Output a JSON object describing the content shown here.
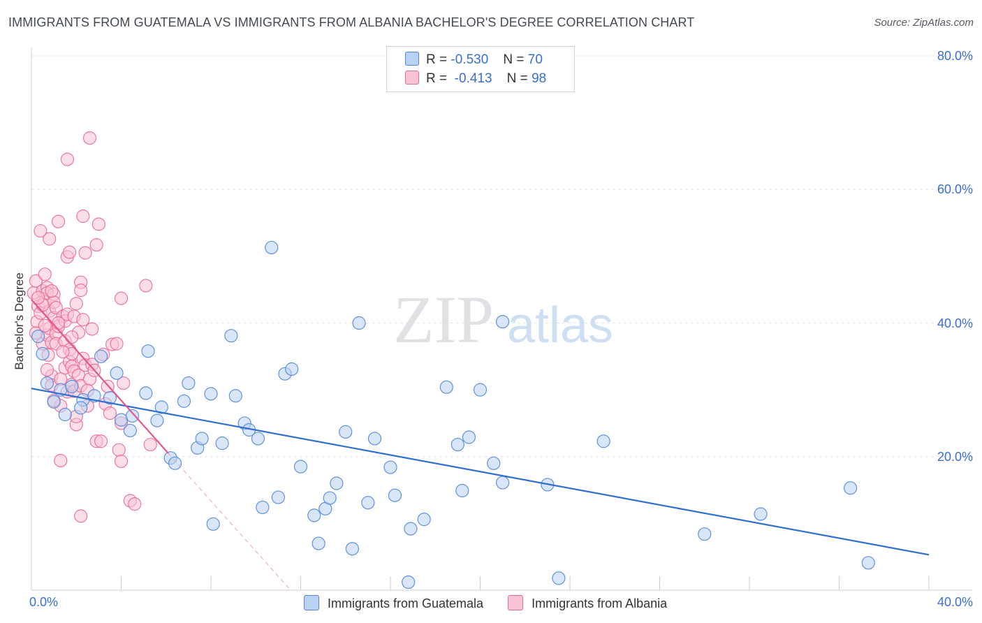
{
  "title": "IMMIGRANTS FROM GUATEMALA VS IMMIGRANTS FROM ALBANIA BACHELOR'S DEGREE CORRELATION CHART",
  "source": "Source: ZipAtlas.com",
  "watermark": {
    "zip": "ZIP",
    "atlas": "atlas"
  },
  "legend": {
    "rows": [
      {
        "r_label": "R =",
        "r_value": "-0.530",
        "n_label": "N =",
        "n_value": "70"
      },
      {
        "r_label": "R =",
        "r_value": "-0.413",
        "n_label": "N =",
        "n_value": "98"
      }
    ]
  },
  "colors": {
    "guatemala_fill": "#b9d2f3",
    "guatemala_stroke": "#4f86d8",
    "guatemala_line": "#2f6fd0",
    "albania_fill": "#f9c3d6",
    "albania_stroke": "#e86a96",
    "albania_line": "#e2588a",
    "grid": "#dfe3e8",
    "tick_text": "#3a6fd1"
  },
  "chart_data": {
    "type": "scatter",
    "title": "IMMIGRANTS FROM GUATEMALA VS IMMIGRANTS FROM ALBANIA BACHELOR'S DEGREE CORRELATION CHART",
    "xlabel": "",
    "ylabel": "Bachelor's Degree",
    "xlim": [
      0,
      40
    ],
    "ylim": [
      0,
      80
    ],
    "x_tick_labels": [
      "0.0%",
      "40.0%"
    ],
    "y_tick_labels": [
      "20.0%",
      "40.0%",
      "60.0%",
      "80.0%"
    ],
    "y_ticks": [
      20,
      40,
      60,
      80
    ],
    "grid": true,
    "legend_position": "top-center",
    "series": [
      {
        "name": "Immigrants from Guatemala",
        "r": -0.53,
        "n": 70,
        "trend": {
          "x": [
            0,
            40
          ],
          "y": [
            30.2,
            5.3
          ]
        },
        "points": [
          [
            0.3,
            38
          ],
          [
            0.5,
            35.4
          ],
          [
            0.7,
            31
          ],
          [
            1.0,
            28.2
          ],
          [
            1.3,
            30
          ],
          [
            1.5,
            26.3
          ],
          [
            1.8,
            30.5
          ],
          [
            2.3,
            28.5
          ],
          [
            2.2,
            27.3
          ],
          [
            2.8,
            29.1
          ],
          [
            3.1,
            35
          ],
          [
            3.5,
            28.8
          ],
          [
            3.8,
            32.5
          ],
          [
            4.0,
            25.5
          ],
          [
            4.4,
            23.9
          ],
          [
            4.5,
            26.1
          ],
          [
            5.1,
            29.5
          ],
          [
            5.2,
            35.8
          ],
          [
            5.6,
            25.4
          ],
          [
            5.8,
            27.4
          ],
          [
            6.2,
            19.8
          ],
          [
            6.4,
            19
          ],
          [
            6.8,
            28.3
          ],
          [
            7.0,
            31
          ],
          [
            7.4,
            21.3
          ],
          [
            7.6,
            22.7
          ],
          [
            8.0,
            29.4
          ],
          [
            8.1,
            9.9
          ],
          [
            8.5,
            22
          ],
          [
            8.9,
            38.1
          ],
          [
            9.1,
            29.1
          ],
          [
            9.5,
            25
          ],
          [
            9.7,
            24
          ],
          [
            10.1,
            22.7
          ],
          [
            10.3,
            12.4
          ],
          [
            10.7,
            51.3
          ],
          [
            11.0,
            13.9
          ],
          [
            11.3,
            32.4
          ],
          [
            11.6,
            33.1
          ],
          [
            12.0,
            18.5
          ],
          [
            12.6,
            11.2
          ],
          [
            12.8,
            7
          ],
          [
            13.1,
            12.2
          ],
          [
            13.3,
            13.8
          ],
          [
            13.6,
            16
          ],
          [
            14.0,
            23.7
          ],
          [
            14.3,
            6.2
          ],
          [
            14.6,
            40
          ],
          [
            15.0,
            13.1
          ],
          [
            15.3,
            22.7
          ],
          [
            16.0,
            18.4
          ],
          [
            16.2,
            14.2
          ],
          [
            16.8,
            1.2
          ],
          [
            16.9,
            9.2
          ],
          [
            17.5,
            10.6
          ],
          [
            18.5,
            30.4
          ],
          [
            19.0,
            21.8
          ],
          [
            19.2,
            14.9
          ],
          [
            19.5,
            22.9
          ],
          [
            20.0,
            30
          ],
          [
            20.6,
            19
          ],
          [
            21.0,
            16.1
          ],
          [
            21.0,
            40.2
          ],
          [
            23.0,
            15.8
          ],
          [
            23.5,
            1.8
          ],
          [
            25.5,
            22.3
          ],
          [
            30.0,
            8.4
          ],
          [
            32.5,
            11.4
          ],
          [
            36.5,
            15.3
          ],
          [
            37.3,
            4.1
          ]
        ]
      },
      {
        "name": "Immigrants from Albania",
        "r": -0.413,
        "n": 98,
        "trend": {
          "x": [
            0,
            6.1
          ],
          "y": [
            43.5,
            20.5
          ]
        },
        "trend_dashed": {
          "x": [
            6.1,
            11.5
          ],
          "y": [
            20.5,
            0.2
          ]
        },
        "points": [
          [
            0.1,
            44.5
          ],
          [
            0.2,
            46.3
          ],
          [
            0.25,
            40.2
          ],
          [
            0.3,
            42.5
          ],
          [
            0.4,
            41.5
          ],
          [
            0.4,
            53.8
          ],
          [
            0.5,
            44.8
          ],
          [
            0.5,
            36.9
          ],
          [
            0.6,
            47.3
          ],
          [
            0.6,
            43.2
          ],
          [
            0.7,
            45.3
          ],
          [
            0.7,
            44.5
          ],
          [
            0.7,
            38.2
          ],
          [
            0.75,
            35.2
          ],
          [
            0.8,
            52.6
          ],
          [
            0.8,
            39.2
          ],
          [
            0.8,
            41.8
          ],
          [
            0.9,
            32.1
          ],
          [
            0.9,
            37.1
          ],
          [
            0.9,
            30.7
          ],
          [
            1.0,
            44.3
          ],
          [
            1.0,
            40.8
          ],
          [
            1.0,
            43.1
          ],
          [
            1.1,
            42.3
          ],
          [
            1.1,
            38.4
          ],
          [
            1.1,
            36.9
          ],
          [
            1.2,
            39.5
          ],
          [
            1.2,
            55.2
          ],
          [
            1.3,
            31.6
          ],
          [
            1.3,
            27.6
          ],
          [
            1.3,
            19.4
          ],
          [
            1.4,
            41
          ],
          [
            1.5,
            37.3
          ],
          [
            1.5,
            33.3
          ],
          [
            1.5,
            40.3
          ],
          [
            1.6,
            29.7
          ],
          [
            1.6,
            64.5
          ],
          [
            1.6,
            49.9
          ],
          [
            1.6,
            41.3
          ],
          [
            1.7,
            50.6
          ],
          [
            1.7,
            36
          ],
          [
            1.7,
            34.2
          ],
          [
            1.8,
            35.4
          ],
          [
            1.8,
            33.5
          ],
          [
            1.8,
            30.8
          ],
          [
            1.9,
            41
          ],
          [
            1.9,
            32.8
          ],
          [
            1.9,
            29.8
          ],
          [
            2.0,
            24.8
          ],
          [
            2.0,
            26
          ],
          [
            2.1,
            38.6
          ],
          [
            2.1,
            32.2
          ],
          [
            2.2,
            46.1
          ],
          [
            2.2,
            44.9
          ],
          [
            2.2,
            30.6
          ],
          [
            2.2,
            11.1
          ],
          [
            2.3,
            56
          ],
          [
            2.3,
            34.7
          ],
          [
            2.3,
            40.5
          ],
          [
            2.4,
            33.7
          ],
          [
            2.4,
            50.5
          ],
          [
            2.5,
            27.6
          ],
          [
            2.6,
            31.6
          ],
          [
            2.6,
            67.7
          ],
          [
            2.7,
            39.1
          ],
          [
            2.7,
            33.8
          ],
          [
            2.8,
            32.9
          ],
          [
            2.9,
            22.3
          ],
          [
            2.9,
            51.7
          ],
          [
            3.0,
            54.8
          ],
          [
            3.1,
            22.3
          ],
          [
            3.2,
            35.3
          ],
          [
            3.3,
            27.9
          ],
          [
            3.4,
            30.5
          ],
          [
            3.6,
            36.8
          ],
          [
            3.8,
            36.9
          ],
          [
            3.9,
            21
          ],
          [
            4.0,
            25
          ],
          [
            4.0,
            43.7
          ],
          [
            4.1,
            31
          ],
          [
            4.0,
            19.3
          ],
          [
            4.4,
            13.4
          ],
          [
            4.6,
            12.9
          ],
          [
            5.1,
            45.6
          ],
          [
            5.3,
            21.8
          ],
          [
            0.5,
            42.7
          ],
          [
            0.9,
            44.8
          ],
          [
            1.2,
            40
          ],
          [
            0.2,
            38.5
          ],
          [
            0.6,
            39.6
          ],
          [
            1.4,
            35.7
          ],
          [
            1.0,
            28.4
          ],
          [
            2.0,
            42.9
          ],
          [
            0.3,
            43.8
          ],
          [
            1.8,
            37.9
          ],
          [
            0.7,
            33
          ],
          [
            2.5,
            29.9
          ],
          [
            3.5,
            26.5
          ]
        ]
      }
    ]
  },
  "bottom_legend": {
    "items": [
      "Immigrants from Guatemala",
      "Immigrants from Albania"
    ]
  }
}
